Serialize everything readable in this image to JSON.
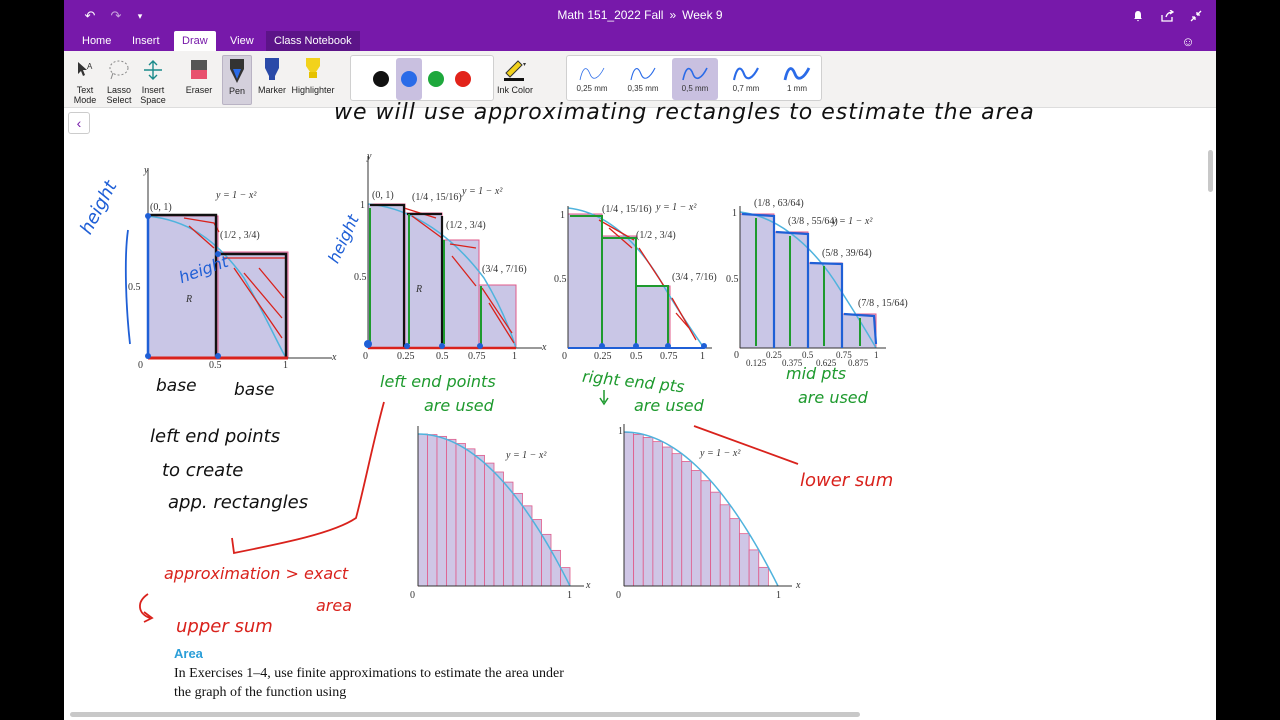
{
  "window": {
    "title_notebook": "Math 151_2022 Fall",
    "title_separator": "»",
    "title_section": "Week 9"
  },
  "tabs": [
    {
      "label": "Home"
    },
    {
      "label": "Insert"
    },
    {
      "label": "Draw",
      "active": true
    },
    {
      "label": "View"
    },
    {
      "label": "Class Notebook"
    }
  ],
  "ribbon": {
    "text_mode": "Text Mode",
    "lasso_select": "Lasso Select",
    "insert_space": "Insert Space",
    "eraser": "Eraser",
    "pen": "Pen",
    "marker": "Marker",
    "highlighter": "Highlighter",
    "ink_color": "Ink Color",
    "colors": [
      "#111111",
      "#2a6be8",
      "#1ea83c",
      "#e2231a"
    ],
    "selected_color": "#2a6be8",
    "thickness": [
      "0,25 mm",
      "0,35 mm",
      "0,5 mm",
      "0,7 mm",
      "1 mm"
    ],
    "selected_thickness": "0,5 mm"
  },
  "notes": {
    "top_line": "we will use approximating rectangles to estimate the area",
    "height1": "height",
    "height2": "height",
    "height3": "height",
    "base1": "base",
    "base2": "base",
    "left_end_points_used_1": "left end points",
    "left_end_points_used_2": "are used",
    "right_end_pts_1": "right end pts",
    "right_end_pts_2": "are used",
    "mid_pts_1": "mid pts",
    "mid_pts_2": "are used",
    "left_end_create_1": "left end points",
    "left_end_create_2": "to create",
    "left_end_create_3": "app. rectangles",
    "approx_1": "approximation > exact",
    "approx_2": "area",
    "upper_sum": "upper sum",
    "lower_sum": "lower sum"
  },
  "figures": {
    "fig1": {
      "eq": "y = 1 − x²",
      "p1": "(0, 1)",
      "p2": "(1/2 , 3/4)",
      "R": "R",
      "y_half": "0.5",
      "x_half": "0.5",
      "x_one": "1",
      "origin": "0",
      "ax_x": "x",
      "ax_y": "y"
    },
    "fig2": {
      "eq": "y = 1 − x²",
      "p1": "(0, 1)",
      "p2": "(1/4 , 15/16)",
      "p3": "(1/2 , 3/4)",
      "p4": "(3/4 , 7/16)",
      "R": "R",
      "ticks": [
        "0",
        "0.25",
        "0.5",
        "0.75",
        "1"
      ],
      "y_one": "1",
      "y_half": "0.5",
      "ax_x": "x",
      "ax_y": "y"
    },
    "fig3": {
      "eq": "y = 1 − x²",
      "p1": "(1/4 , 15/16)",
      "p2": "(1/2 , 3/4)",
      "p3": "(3/4 , 7/16)",
      "ticks": [
        "0",
        "0.25",
        "0.5",
        "0.75",
        "1"
      ],
      "y_one": "1",
      "y_half": "0.5",
      "ax_y": "y"
    },
    "fig4": {
      "eq": "y = 1 − x²",
      "p1": "(1/8 , 63/64)",
      "p2": "(3/8 , 55/64)",
      "p3": "(5/8 , 39/64)",
      "p4": "(7/8 , 15/64)",
      "ticks": [
        "0",
        "0.125",
        "0.25",
        "0.375",
        "0.5",
        "0.625",
        "0.75",
        "0.875",
        "1"
      ],
      "y_one": "1",
      "y_half": "0.5",
      "ax_y": "y"
    },
    "fig5": {
      "eq": "y = 1 − x²",
      "x_zero": "0",
      "x_one": "1",
      "y_one": "1",
      "ax_x": "x"
    },
    "fig6": {
      "eq": "y = 1 − x²",
      "x_zero": "0",
      "x_one": "1",
      "y_one": "1",
      "ax_x": "x"
    }
  },
  "book": {
    "title": "Area",
    "line1": "In Exercises 1–4, use finite approximations to estimate the area under",
    "line2": "the graph of the function using"
  }
}
